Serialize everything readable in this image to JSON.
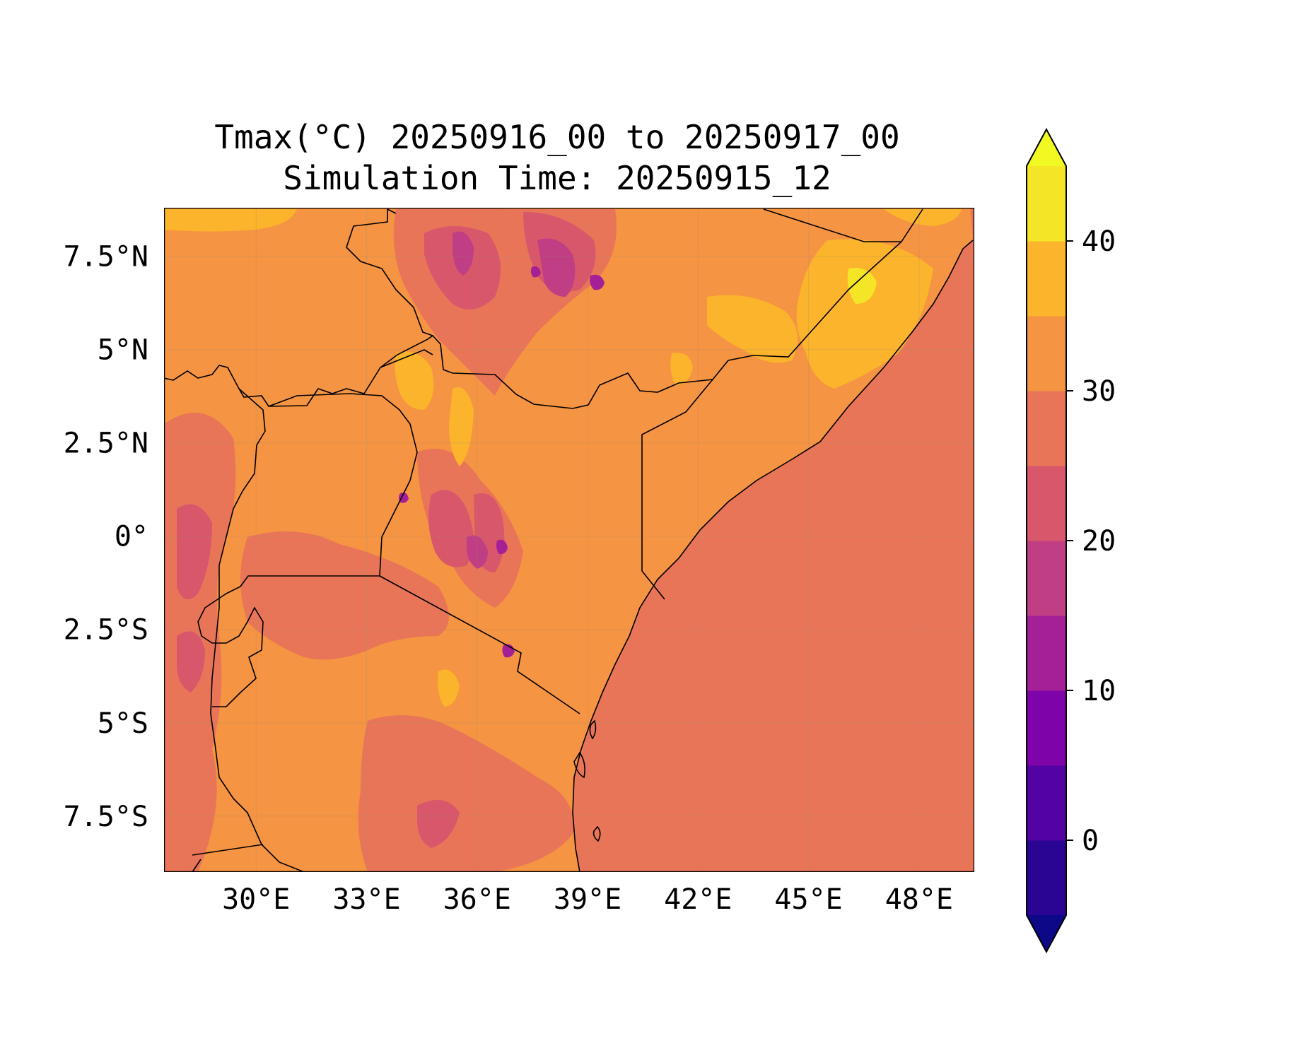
{
  "title": {
    "line1": "Tmax(°C) 20250916_00 to 20250917_00",
    "line2": "Simulation Time: 20250915_12"
  },
  "map": {
    "lon_range": [
      27.5,
      49.5
    ],
    "lat_range": [
      -9.0,
      8.8
    ],
    "lon_ticks": [
      {
        "value": 30,
        "label": "30°E"
      },
      {
        "value": 33,
        "label": "33°E"
      },
      {
        "value": 36,
        "label": "36°E"
      },
      {
        "value": 39,
        "label": "39°E"
      },
      {
        "value": 42,
        "label": "42°E"
      },
      {
        "value": 45,
        "label": "45°E"
      },
      {
        "value": 48,
        "label": "48°E"
      }
    ],
    "lat_ticks": [
      {
        "value": 7.5,
        "label": "7.5°N"
      },
      {
        "value": 5,
        "label": "5°N"
      },
      {
        "value": 2.5,
        "label": "2.5°N"
      },
      {
        "value": 0,
        "label": "0°"
      },
      {
        "value": -2.5,
        "label": "2.5°S"
      },
      {
        "value": -5,
        "label": "5°S"
      },
      {
        "value": -7.5,
        "label": "7.5°S"
      }
    ],
    "gridlines": true,
    "ocean_color": "#e97558",
    "land_color": "#f59442"
  },
  "colorbar": {
    "levels": [
      -5,
      0,
      5,
      10,
      15,
      20,
      25,
      30,
      35,
      40,
      45
    ],
    "band_colors": [
      "#2a0593",
      "#5302a3",
      "#7e03a8",
      "#a51f97",
      "#c03e83",
      "#d8576b",
      "#e97558",
      "#f59442",
      "#fbb42b",
      "#f4e626"
    ],
    "extend_low_color": "#0d0887",
    "extend_high_color": "#f0f921",
    "ticks": [
      {
        "value": 0,
        "label": "0"
      },
      {
        "value": 10,
        "label": "10"
      },
      {
        "value": 20,
        "label": "20"
      },
      {
        "value": 30,
        "label": "30"
      },
      {
        "value": 40,
        "label": "40"
      }
    ]
  }
}
